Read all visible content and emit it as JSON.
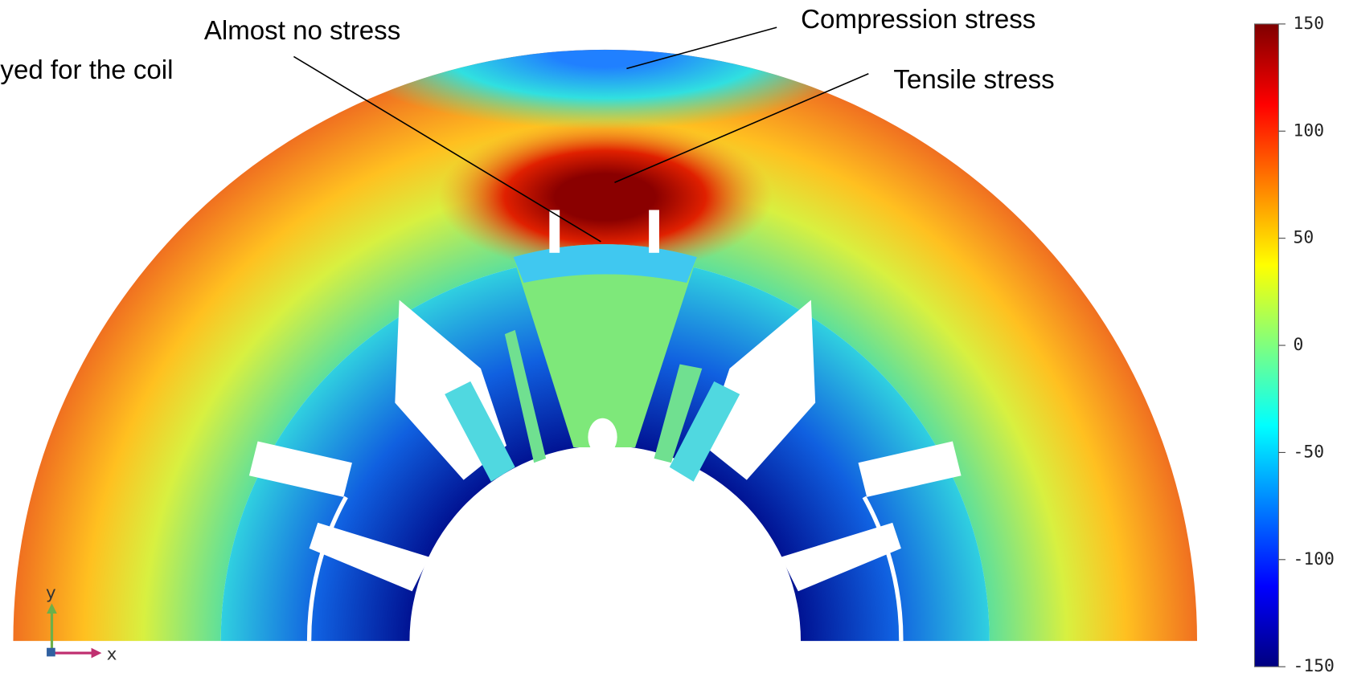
{
  "annotations": {
    "left": "yed for the coil",
    "no_stress": "Almost no stress",
    "compression": "Compression stress",
    "tensile": "Tensile stress"
  },
  "axes": {
    "y": "y",
    "x": "x"
  },
  "colorbar": {
    "range": [
      -150,
      150
    ],
    "ticks": [
      150,
      100,
      50,
      0,
      -50,
      -100,
      -150
    ]
  }
}
